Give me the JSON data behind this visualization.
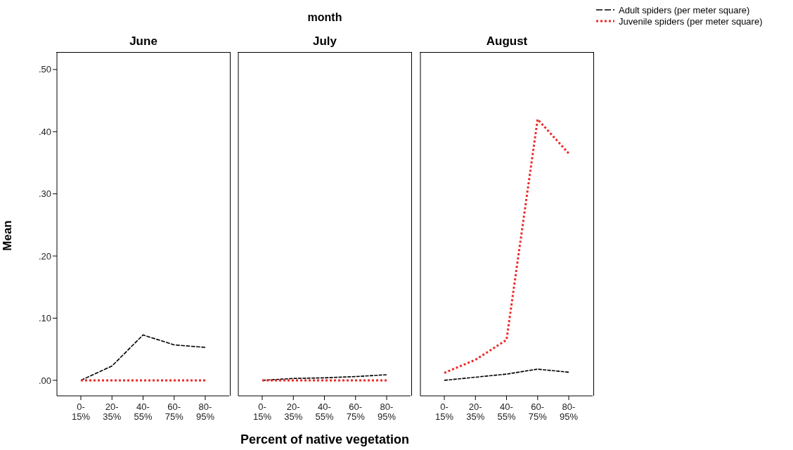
{
  "chart_data": [
    {
      "type": "line",
      "title": "June",
      "ylabel": "Mean",
      "categories": [
        "0-15%",
        "20-35%",
        "40-55%",
        "60-75%",
        "80-95%"
      ],
      "series": [
        {
          "color": "#000000",
          "line_style": "dashed",
          "values": [
            0,
            0.023,
            0.073,
            0.057,
            0.053
          ]
        },
        {
          "color": "#ee2a2a",
          "line_style": "dotted",
          "values": [
            0,
            0,
            0,
            0,
            0
          ]
        }
      ],
      "ylim": [
        -0.025,
        0.527
      ],
      "yticks": [
        {
          "value": 0,
          "label": ".00"
        },
        {
          "value": 0.1,
          "label": ".10"
        },
        {
          "value": 0.2,
          "label": ".20"
        },
        {
          "value": 0.3,
          "label": ".30"
        },
        {
          "value": 0.4,
          "label": ".40"
        },
        {
          "value": 0.5,
          "label": ".50"
        }
      ],
      "grid": false
    },
    {
      "type": "line",
      "title": "July",
      "xlabel": "Percent of native vegetation",
      "annotations": [
        "month"
      ],
      "categories": [
        "0-15%",
        "20-35%",
        "40-55%",
        "60-75%",
        "80-95%"
      ],
      "series": [
        {
          "color": "#000000",
          "line_style": "dashed",
          "values": [
            0,
            0.003,
            0.004,
            0.006,
            0.009
          ]
        },
        {
          "color": "#ee2a2a",
          "line_style": "dotted",
          "values": [
            0,
            0,
            0,
            0,
            0
          ]
        }
      ],
      "ylim": [
        -0.025,
        0.527
      ],
      "tick_labels": "x",
      "grid": false
    },
    {
      "type": "line",
      "title": "August",
      "categories": [
        "0-15%",
        "20-35%",
        "40-55%",
        "60-75%",
        "80-95%"
      ],
      "series": [
        {
          "name": "Adult spiders (per meter square)",
          "color": "#000000",
          "line_style": "dashed",
          "values": [
            0,
            0.005,
            0.01,
            0.018,
            0.013
          ]
        },
        {
          "name": "Juvenile spiders (per meter square)",
          "color": "#ee2a2a",
          "line_style": "dotted",
          "values": [
            0.012,
            0.033,
            0.065,
            0.42,
            0.365
          ]
        }
      ],
      "ylim": [
        -0.025,
        0.527
      ],
      "tick_labels": "x",
      "legend": "top right",
      "grid": false
    }
  ]
}
